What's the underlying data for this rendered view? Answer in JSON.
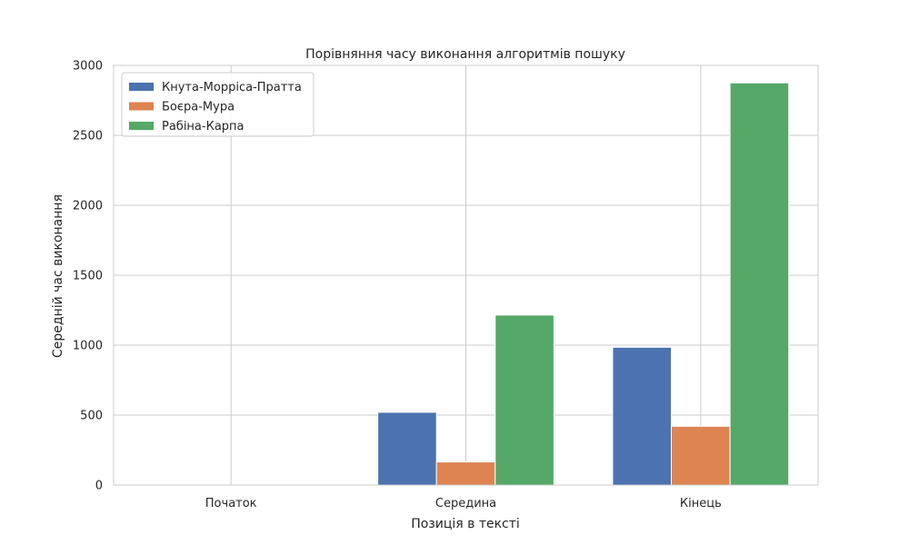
{
  "chart_data": {
    "type": "bar",
    "title": "Порівняння часу виконання алгоритмів пошуку",
    "xlabel": "Позиція в тексті",
    "ylabel": "Середній час виконання",
    "categories": [
      "Початок",
      "Середина",
      "Кінець"
    ],
    "ylim": [
      0,
      3000
    ],
    "yticks": [
      0,
      500,
      1000,
      1500,
      2000,
      2500,
      3000
    ],
    "grid": true,
    "legend_position": "top-left",
    "series": [
      {
        "name": "Кнута-Морріса-Пратта",
        "color": "#4c72b0",
        "values": [
          1,
          520,
          985
        ]
      },
      {
        "name": "Боєра-Мура",
        "color": "#dd8452",
        "values": [
          1,
          165,
          420
        ]
      },
      {
        "name": "Рабіна-Карпа",
        "color": "#55a868",
        "values": [
          4,
          1215,
          2875
        ]
      }
    ]
  }
}
